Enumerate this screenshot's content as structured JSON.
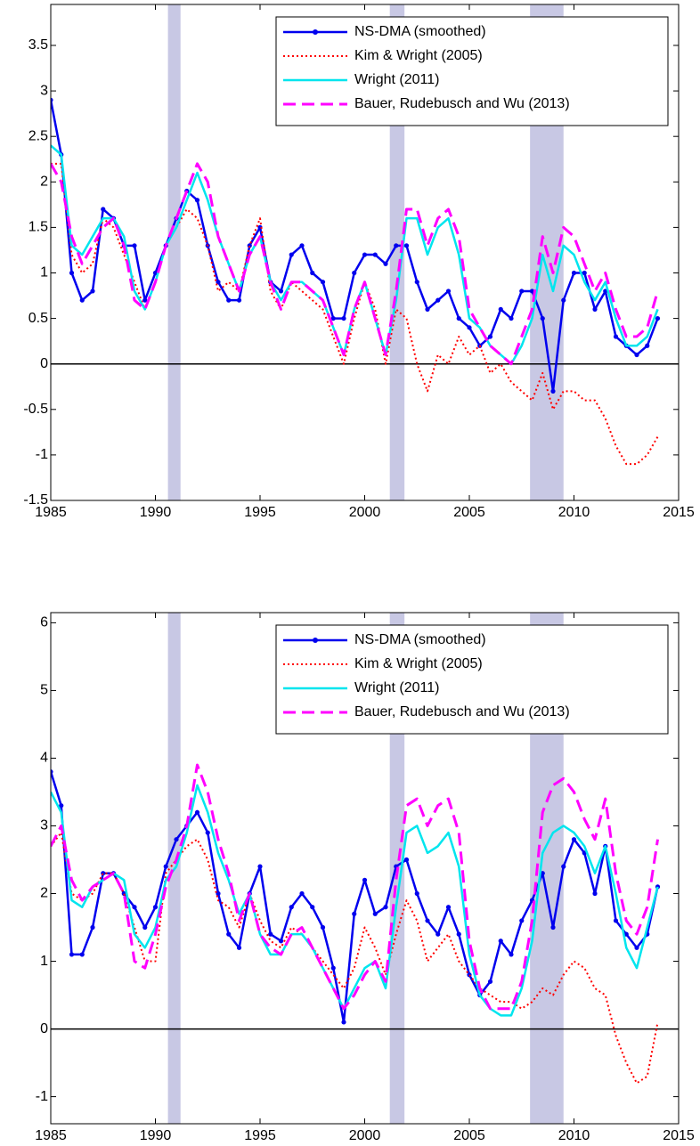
{
  "chart_data": [
    {
      "type": "line",
      "legend": "upper right",
      "grid": false,
      "xlim": [
        1985,
        2015
      ],
      "xticks": [
        1985,
        1990,
        1995,
        2000,
        2005,
        2010,
        2015
      ],
      "ylim": [
        -1.5,
        3.95
      ],
      "yticks": [
        -1.5,
        -1,
        -0.5,
        0,
        0.5,
        1,
        1.5,
        2,
        2.5,
        3,
        3.5
      ],
      "hline": 0,
      "shaded_x_ranges": [
        [
          1990.6,
          1991.2
        ],
        [
          2001.2,
          2001.9
        ],
        [
          2007.9,
          2009.5
        ]
      ],
      "x": [
        1985,
        1985.5,
        1986,
        1986.5,
        1987,
        1987.5,
        1988,
        1988.5,
        1989,
        1989.5,
        1990,
        1990.5,
        1991,
        1991.5,
        1992,
        1992.5,
        1993,
        1993.5,
        1994,
        1994.5,
        1995,
        1995.5,
        1996,
        1996.5,
        1997,
        1997.5,
        1998,
        1998.5,
        1999,
        1999.5,
        2000,
        2000.5,
        2001,
        2001.5,
        2002,
        2002.5,
        2003,
        2003.5,
        2004,
        2004.5,
        2005,
        2005.5,
        2006,
        2006.5,
        2007,
        2007.5,
        2008,
        2008.5,
        2009,
        2009.5,
        2010,
        2010.5,
        2011,
        2011.5,
        2012,
        2012.5,
        2013,
        2013.5,
        2014
      ],
      "series": [
        {
          "name": "NS-DMA (smoothed)",
          "color": "#0000ee",
          "linestyle": "solid",
          "marker": "o",
          "values": [
            2.9,
            2.3,
            1.0,
            0.7,
            0.8,
            1.7,
            1.6,
            1.3,
            1.3,
            0.7,
            1.0,
            1.3,
            1.6,
            1.9,
            1.8,
            1.3,
            0.9,
            0.7,
            0.7,
            1.3,
            1.5,
            0.9,
            0.8,
            1.2,
            1.3,
            1.0,
            0.9,
            0.5,
            0.5,
            1.0,
            1.2,
            1.2,
            1.1,
            1.3,
            1.3,
            0.9,
            0.6,
            0.7,
            0.8,
            0.5,
            0.4,
            0.2,
            0.3,
            0.6,
            0.5,
            0.8,
            0.8,
            0.5,
            -0.3,
            0.7,
            1.0,
            1.0,
            0.6,
            0.8,
            0.3,
            0.2,
            0.1,
            0.2,
            0.5
          ]
        },
        {
          "name": "Kim & Wright (2005)",
          "color": "#ff0000",
          "linestyle": "dotted",
          "values": [
            2.2,
            2.2,
            1.2,
            1.0,
            1.1,
            1.6,
            1.5,
            1.2,
            0.9,
            0.6,
            0.9,
            1.3,
            1.5,
            1.7,
            1.6,
            1.3,
            0.8,
            0.9,
            0.8,
            1.3,
            1.6,
            0.8,
            0.6,
            0.9,
            0.8,
            0.7,
            0.6,
            0.3,
            0.0,
            0.5,
            0.9,
            0.6,
            0.0,
            0.6,
            0.5,
            0.0,
            -0.3,
            0.1,
            0.0,
            0.3,
            0.1,
            0.2,
            -0.1,
            0.0,
            -0.2,
            -0.3,
            -0.4,
            -0.1,
            -0.5,
            -0.3,
            -0.3,
            -0.4,
            -0.4,
            -0.6,
            -0.9,
            -1.1,
            -1.1,
            -1.0,
            -0.8
          ]
        },
        {
          "name": "Wright (2011)",
          "color": "#00e5ee",
          "linestyle": "solid",
          "values": [
            2.4,
            2.3,
            1.3,
            1.2,
            1.4,
            1.6,
            1.6,
            1.4,
            0.8,
            0.6,
            0.9,
            1.3,
            1.5,
            1.8,
            2.1,
            1.8,
            1.4,
            1.1,
            0.8,
            1.2,
            1.4,
            0.9,
            0.7,
            0.9,
            0.9,
            0.8,
            0.7,
            0.4,
            0.1,
            0.6,
            0.9,
            0.5,
            0.1,
            0.7,
            1.6,
            1.6,
            1.2,
            1.5,
            1.6,
            1.2,
            0.5,
            0.4,
            0.2,
            0.1,
            0.0,
            0.2,
            0.5,
            1.2,
            0.8,
            1.3,
            1.2,
            0.9,
            0.7,
            0.9,
            0.5,
            0.2,
            0.2,
            0.3,
            0.6
          ]
        },
        {
          "name": "Bauer, Rudebusch and Wu (2013)",
          "color": "#ff00ff",
          "linestyle": "dashed",
          "values": [
            2.2,
            2.0,
            1.4,
            1.1,
            1.3,
            1.5,
            1.6,
            1.3,
            0.7,
            0.6,
            0.9,
            1.3,
            1.6,
            1.9,
            2.2,
            2.0,
            1.4,
            1.1,
            0.8,
            1.2,
            1.4,
            0.9,
            0.6,
            0.9,
            0.9,
            0.8,
            0.7,
            0.4,
            0.1,
            0.6,
            0.9,
            0.5,
            0.1,
            0.8,
            1.7,
            1.7,
            1.3,
            1.6,
            1.7,
            1.4,
            0.6,
            0.4,
            0.2,
            0.1,
            0.0,
            0.3,
            0.6,
            1.4,
            1.0,
            1.5,
            1.4,
            1.1,
            0.8,
            1.0,
            0.6,
            0.3,
            0.3,
            0.4,
            0.8
          ]
        }
      ]
    },
    {
      "type": "line",
      "legend": "upper right",
      "grid": false,
      "xlim": [
        1985,
        2015
      ],
      "xticks": [
        1985,
        1990,
        1995,
        2000,
        2005,
        2010,
        2015
      ],
      "ylim": [
        -1.4,
        6.15
      ],
      "yticks": [
        -1,
        0,
        1,
        2,
        3,
        4,
        5,
        6
      ],
      "hline": 0,
      "shaded_x_ranges": [
        [
          1990.6,
          1991.2
        ],
        [
          2001.2,
          2001.9
        ],
        [
          2007.9,
          2009.5
        ]
      ],
      "x": [
        1985,
        1985.5,
        1986,
        1986.5,
        1987,
        1987.5,
        1988,
        1988.5,
        1989,
        1989.5,
        1990,
        1990.5,
        1991,
        1991.5,
        1992,
        1992.5,
        1993,
        1993.5,
        1994,
        1994.5,
        1995,
        1995.5,
        1996,
        1996.5,
        1997,
        1997.5,
        1998,
        1998.5,
        1999,
        1999.5,
        2000,
        2000.5,
        2001,
        2001.5,
        2002,
        2002.5,
        2003,
        2003.5,
        2004,
        2004.5,
        2005,
        2005.5,
        2006,
        2006.5,
        2007,
        2007.5,
        2008,
        2008.5,
        2009,
        2009.5,
        2010,
        2010.5,
        2011,
        2011.5,
        2012,
        2012.5,
        2013,
        2013.5,
        2014
      ],
      "series": [
        {
          "name": "NS-DMA (smoothed)",
          "color": "#0000ee",
          "linestyle": "solid",
          "marker": "o",
          "values": [
            3.8,
            3.3,
            1.1,
            1.1,
            1.5,
            2.3,
            2.3,
            2.0,
            1.8,
            1.5,
            1.8,
            2.4,
            2.8,
            3.0,
            3.2,
            2.9,
            2.0,
            1.4,
            1.2,
            2.0,
            2.4,
            1.4,
            1.3,
            1.8,
            2.0,
            1.8,
            1.5,
            0.9,
            0.1,
            1.7,
            2.2,
            1.7,
            1.8,
            2.4,
            2.5,
            2.0,
            1.6,
            1.4,
            1.8,
            1.4,
            0.8,
            0.5,
            0.7,
            1.3,
            1.1,
            1.6,
            1.9,
            2.3,
            1.5,
            2.4,
            2.8,
            2.6,
            2.0,
            2.7,
            1.6,
            1.4,
            1.2,
            1.4,
            2.1
          ]
        },
        {
          "name": "Kim & Wright (2005)",
          "color": "#ff0000",
          "linestyle": "dotted",
          "values": [
            2.7,
            2.9,
            2.0,
            1.9,
            2.0,
            2.3,
            2.3,
            2.0,
            1.5,
            1.0,
            1.0,
            2.3,
            2.5,
            2.7,
            2.8,
            2.5,
            1.9,
            1.8,
            1.5,
            2.0,
            1.6,
            1.3,
            1.2,
            1.5,
            1.4,
            1.2,
            1.0,
            0.8,
            0.6,
            0.9,
            1.5,
            1.2,
            0.8,
            1.4,
            1.9,
            1.6,
            1.0,
            1.2,
            1.4,
            1.0,
            0.8,
            0.6,
            0.5,
            0.4,
            0.4,
            0.3,
            0.4,
            0.6,
            0.5,
            0.8,
            1.0,
            0.9,
            0.6,
            0.5,
            -0.1,
            -0.5,
            -0.8,
            -0.7,
            0.1
          ]
        },
        {
          "name": "Wright (2011)",
          "color": "#00e5ee",
          "linestyle": "solid",
          "values": [
            3.5,
            3.2,
            1.9,
            1.8,
            2.1,
            2.2,
            2.3,
            2.2,
            1.4,
            1.2,
            1.5,
            2.2,
            2.4,
            2.9,
            3.6,
            3.2,
            2.6,
            2.2,
            1.7,
            2.0,
            1.4,
            1.1,
            1.1,
            1.4,
            1.4,
            1.2,
            0.9,
            0.6,
            0.3,
            0.6,
            0.9,
            1.0,
            0.6,
            1.8,
            2.9,
            3.0,
            2.6,
            2.7,
            2.9,
            2.4,
            1.1,
            0.5,
            0.3,
            0.2,
            0.2,
            0.6,
            1.3,
            2.6,
            2.9,
            3.0,
            2.9,
            2.7,
            2.3,
            2.7,
            2.0,
            1.2,
            0.9,
            1.5,
            2.1
          ]
        },
        {
          "name": "Bauer, Rudebusch and Wu (2013)",
          "color": "#ff00ff",
          "linestyle": "dashed",
          "values": [
            2.7,
            3.0,
            2.2,
            1.9,
            2.1,
            2.2,
            2.3,
            2.0,
            1.0,
            0.9,
            1.4,
            2.1,
            2.5,
            3.0,
            3.9,
            3.5,
            2.8,
            2.3,
            1.6,
            2.0,
            1.4,
            1.2,
            1.1,
            1.4,
            1.5,
            1.2,
            0.9,
            0.6,
            0.3,
            0.5,
            0.8,
            1.0,
            0.7,
            2.2,
            3.3,
            3.4,
            3.0,
            3.3,
            3.4,
            2.9,
            1.3,
            0.6,
            0.3,
            0.3,
            0.3,
            0.7,
            1.6,
            3.2,
            3.6,
            3.7,
            3.5,
            3.1,
            2.8,
            3.4,
            2.3,
            1.6,
            1.4,
            1.8,
            2.8
          ]
        }
      ]
    }
  ]
}
